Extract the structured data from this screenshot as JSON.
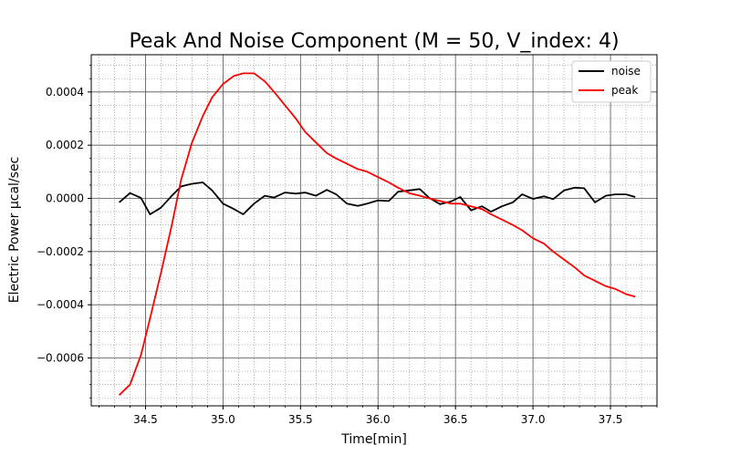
{
  "chart_data": {
    "type": "line",
    "title": "Peak And Noise Component (M = 50, V_index: 4)",
    "xlabel": "Time[min]",
    "ylabel": "Electric Power µcal/sec",
    "xlim": [
      34.15,
      37.8
    ],
    "ylim": [
      -0.00078,
      0.00054
    ],
    "xticks": [
      34.5,
      35.0,
      35.5,
      36.0,
      36.5,
      37.0,
      37.5
    ],
    "xtick_labels": [
      "34.5",
      "35.0",
      "35.5",
      "36.0",
      "36.5",
      "37.0",
      "37.5"
    ],
    "yticks": [
      -0.0006,
      -0.0004,
      -0.0002,
      0.0,
      0.0002,
      0.0004
    ],
    "ytick_labels": [
      "−0.0006",
      "−0.0004",
      "−0.0002",
      "0.0000",
      "0.0002",
      "0.0004"
    ],
    "grid": true,
    "legend": "upper-right",
    "series": [
      {
        "name": "noise",
        "color": "#000000",
        "x": [
          34.33,
          34.4,
          34.47,
          34.53,
          34.6,
          34.67,
          34.73,
          34.8,
          34.87,
          34.93,
          35.0,
          35.07,
          35.13,
          35.2,
          35.27,
          35.33,
          35.4,
          35.47,
          35.53,
          35.6,
          35.67,
          35.73,
          35.8,
          35.87,
          35.93,
          36.0,
          36.07,
          36.13,
          36.2,
          36.27,
          36.33,
          36.4,
          36.47,
          36.53,
          36.6,
          36.67,
          36.73,
          36.8,
          36.87,
          36.93,
          37.0,
          37.07,
          37.13,
          37.2,
          37.27,
          37.33,
          37.4,
          37.47,
          37.53,
          37.6,
          37.66
        ],
        "y": [
          -1.5e-05,
          2e-05,
          2e-06,
          -6e-05,
          -3.5e-05,
          1e-05,
          4.5e-05,
          5.5e-05,
          6e-05,
          3e-05,
          -2e-05,
          -4e-05,
          -6e-05,
          -2e-05,
          1e-05,
          3e-06,
          2.2e-05,
          1.8e-05,
          2.2e-05,
          1e-05,
          3.2e-05,
          1.5e-05,
          -2e-05,
          -2.8e-05,
          -2e-05,
          -8e-06,
          -1e-05,
          2.5e-05,
          3e-05,
          3.5e-05,
          2e-06,
          -2.2e-05,
          -1.2e-05,
          5e-06,
          -4.5e-05,
          -3e-05,
          -5e-05,
          -3e-05,
          -1.5e-05,
          1.5e-05,
          -2e-06,
          8e-06,
          -3e-06,
          3e-05,
          4e-05,
          3.8e-05,
          -1.5e-05,
          1e-05,
          1.5e-05,
          1.5e-05,
          5e-06
        ]
      },
      {
        "name": "peak",
        "color": "#ff0000",
        "x": [
          34.33,
          34.4,
          34.47,
          34.53,
          34.6,
          34.67,
          34.73,
          34.8,
          34.87,
          34.93,
          35.0,
          35.07,
          35.13,
          35.2,
          35.27,
          35.33,
          35.4,
          35.47,
          35.53,
          35.6,
          35.67,
          35.73,
          35.8,
          35.87,
          35.93,
          36.0,
          36.07,
          36.13,
          36.2,
          36.27,
          36.33,
          36.4,
          36.47,
          36.53,
          36.6,
          36.67,
          36.73,
          36.8,
          36.87,
          36.93,
          37.0,
          37.07,
          37.13,
          37.2,
          37.27,
          37.33,
          37.4,
          37.47,
          37.53,
          37.6,
          37.66
        ],
        "y": [
          -0.00074,
          -0.0007,
          -0.00059,
          -0.00045,
          -0.00028,
          -0.0001,
          7e-05,
          0.00021,
          0.00031,
          0.00038,
          0.00043,
          0.00046,
          0.00047,
          0.00047,
          0.00044,
          0.0004,
          0.00035,
          0.0003,
          0.00025,
          0.00021,
          0.00017,
          0.00015,
          0.00013,
          0.00011,
          0.0001,
          8e-05,
          6e-05,
          4e-05,
          2e-05,
          1e-05,
          0.0,
          -1e-05,
          -2e-05,
          -2e-05,
          -3e-05,
          -4e-05,
          -6e-05,
          -8e-05,
          -0.0001,
          -0.00012,
          -0.00015,
          -0.00017,
          -0.0002,
          -0.00023,
          -0.00026,
          -0.00029,
          -0.00031,
          -0.00033,
          -0.00034,
          -0.00036,
          -0.00037
        ]
      }
    ]
  }
}
